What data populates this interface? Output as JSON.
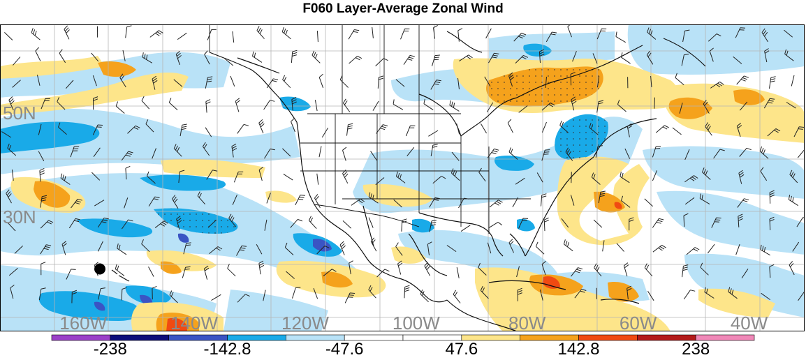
{
  "title": "F060 Layer-Average Zonal Wind",
  "map": {
    "lat_labels": [
      {
        "text": "50N",
        "lat": 50
      },
      {
        "text": "30N",
        "lat": 30
      }
    ],
    "lon_labels": [
      {
        "text": "160W",
        "lon": -160
      },
      {
        "text": "140W",
        "lon": -140
      },
      {
        "text": "120W",
        "lon": -120
      },
      {
        "text": "100W",
        "lon": -100
      },
      {
        "text": "80W",
        "lon": -80
      },
      {
        "text": "60W",
        "lon": -60
      },
      {
        "text": "40W",
        "lon": -40
      }
    ],
    "lon_range": [
      -175,
      -30
    ],
    "lat_range": [
      8,
      67
    ],
    "marker": {
      "lon": -157,
      "lat": 20,
      "color": "#000000"
    }
  },
  "colorbar": {
    "colors": [
      "#9b40c8",
      "#0d0d7a",
      "#3a54c4",
      "#19aae8",
      "#b9e2f7",
      "#ffffff",
      "#ffffff",
      "#fde58a",
      "#f5a21c",
      "#f04a12",
      "#b31a1a",
      "#f088b8"
    ],
    "labels": [
      {
        "text": "-238",
        "pos": 1
      },
      {
        "text": "-142.8",
        "pos": 3
      },
      {
        "text": "-47.6",
        "pos": 5
      },
      {
        "text": "47.6",
        "pos": 7
      },
      {
        "text": "142.8",
        "pos": 9
      },
      {
        "text": "238",
        "pos": 11
      }
    ]
  }
}
